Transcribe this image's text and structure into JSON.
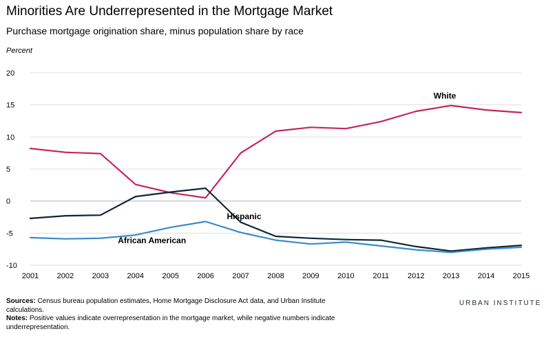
{
  "title": "Minorities Are Underrepresented in the Mortgage Market",
  "subtitle": "Purchase mortgage origination share, minus population share by race",
  "footer": {
    "sources_label": "Sources:",
    "sources_text": "Census bureau population estimates, Home Mortgage Disclosure Act data, and Urban Institute calculations.",
    "notes_label": "Notes:",
    "notes_text": "Positive values indicate overrepresentation in the mortgage market, while negative numbers indicate underrepresentation."
  },
  "brand": "URBAN INSTITUTE",
  "chart_data": {
    "type": "line",
    "ylabel": "Percent",
    "xlabel": "",
    "x": [
      "2001",
      "2002",
      "2003",
      "2004",
      "2005",
      "2006",
      "2007",
      "2008",
      "2009",
      "2010",
      "2011",
      "2012",
      "2013",
      "2014",
      "2015"
    ],
    "ylim": [
      -10,
      20
    ],
    "yticks": [
      20,
      15,
      10,
      5,
      0,
      -5,
      -10
    ],
    "ytick_labels": [
      "20",
      "15",
      "10",
      "5",
      "0",
      "-5",
      "-10"
    ],
    "grid": true,
    "series": [
      {
        "name": "White",
        "color": "#c8235f",
        "values": [
          8.2,
          7.6,
          7.4,
          2.6,
          1.3,
          0.5,
          7.5,
          10.9,
          11.5,
          11.3,
          12.4,
          14.0,
          14.9,
          14.2,
          13.8
        ]
      },
      {
        "name": "Hispanic",
        "color": "#0d2535",
        "values": [
          -2.7,
          -2.3,
          -2.2,
          0.7,
          1.4,
          2.0,
          -3.3,
          -5.5,
          -5.8,
          -6.0,
          -6.1,
          -7.1,
          -7.8,
          -7.3,
          -6.9
        ]
      },
      {
        "name": "African American",
        "color": "#3a8ac9",
        "values": [
          -5.7,
          -5.9,
          -5.8,
          -5.3,
          -4.1,
          -3.2,
          -4.9,
          -6.1,
          -6.7,
          -6.4,
          -7.0,
          -7.6,
          -8.0,
          -7.5,
          -7.2
        ]
      }
    ],
    "annotations": [
      {
        "text": "White",
        "series": "White",
        "at_x": "2013"
      },
      {
        "text": "Hispanic",
        "series": "Hispanic",
        "at_x": "2008"
      },
      {
        "text": "African American",
        "series": "African American",
        "at_x": "2005"
      }
    ]
  }
}
